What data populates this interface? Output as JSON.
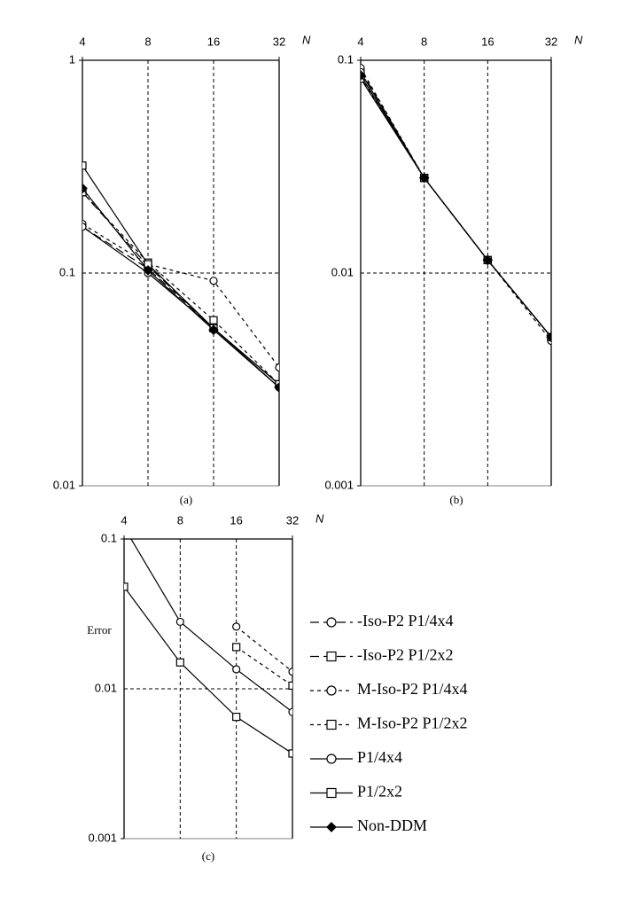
{
  "chart_data": [
    {
      "type": "line",
      "caption": "(a)",
      "x_label": "N",
      "x": [
        4,
        8,
        16,
        32
      ],
      "xlim": [
        4,
        32
      ],
      "xticks": [
        4,
        8,
        16,
        32
      ],
      "ylim": [
        0.01,
        1
      ],
      "yticks": [
        0.01,
        0.1,
        1
      ],
      "log_x": true,
      "log_y": true,
      "grid": true,
      "series": [
        {
          "name": "-Iso-P2 P1/4x4",
          "color": "#000000",
          "dash": "long",
          "marker": "circle",
          "values": [
            0.165,
            0.105,
            0.055,
            0.03
          ]
        },
        {
          "name": "-Iso-P2 P1/2x2",
          "color": "#000000",
          "dash": "long",
          "marker": "square",
          "values": [
            0.24,
            0.108,
            0.055,
            0.03
          ]
        },
        {
          "name": "M-Iso-P2 P1/4x4",
          "color": "#000000",
          "dash": "short",
          "marker": "circle",
          "values": [
            0.17,
            0.11,
            0.092,
            0.036
          ]
        },
        {
          "name": "M-Iso-P2 P1/2x2",
          "color": "#000000",
          "dash": "short",
          "marker": "square",
          "values": [
            0.24,
            0.112,
            0.06,
            0.03
          ]
        },
        {
          "name": "P1/4x4",
          "color": "#000000",
          "dash": "solid",
          "marker": "circle",
          "values": [
            0.165,
            0.1,
            0.055,
            0.029
          ]
        },
        {
          "name": "P1/2x2",
          "color": "#000000",
          "dash": "solid",
          "marker": "square",
          "values": [
            0.32,
            0.11,
            0.055,
            0.03
          ]
        },
        {
          "name": "Non-DDM",
          "color": "#000000",
          "dash": "solid",
          "marker": "diamond",
          "values": [
            0.25,
            0.103,
            0.054,
            0.029
          ]
        }
      ]
    },
    {
      "type": "line",
      "caption": "(b)",
      "x_label": "N",
      "x": [
        4,
        8,
        16,
        32
      ],
      "xlim": [
        4,
        32
      ],
      "xticks": [
        4,
        8,
        16,
        32
      ],
      "ylim": [
        0.001,
        0.1
      ],
      "yticks": [
        0.001,
        0.01,
        0.1
      ],
      "log_x": true,
      "log_y": true,
      "grid": true,
      "series": [
        {
          "name": "-Iso-P2 P1/4x4",
          "color": "#000000",
          "dash": "long",
          "marker": "circle",
          "values": [
            0.09,
            0.028,
            0.0115,
            0.005
          ]
        },
        {
          "name": "-Iso-P2 P1/2x2",
          "color": "#000000",
          "dash": "long",
          "marker": "square",
          "values": [
            0.085,
            0.028,
            0.0115,
            0.005
          ]
        },
        {
          "name": "M-Iso-P2 P1/4x4",
          "color": "#000000",
          "dash": "short",
          "marker": "circle",
          "values": [
            0.092,
            0.028,
            0.0115,
            0.0048
          ]
        },
        {
          "name": "M-Iso-P2 P1/2x2",
          "color": "#000000",
          "dash": "short",
          "marker": "square",
          "values": [
            0.083,
            0.028,
            0.0115,
            0.005
          ]
        },
        {
          "name": "P1/4x4",
          "color": "#000000",
          "dash": "solid",
          "marker": "circle",
          "values": [
            0.088,
            0.028,
            0.0115,
            0.005
          ]
        },
        {
          "name": "P1/2x2",
          "color": "#000000",
          "dash": "solid",
          "marker": "square",
          "values": [
            0.082,
            0.028,
            0.0115,
            0.005
          ]
        },
        {
          "name": "Non-DDM",
          "color": "#000000",
          "dash": "solid",
          "marker": "diamond",
          "values": [
            0.085,
            0.028,
            0.0115,
            0.005
          ]
        }
      ]
    },
    {
      "type": "line",
      "caption": "(c)",
      "x_label": "N",
      "y_label": "Error",
      "x": [
        4,
        8,
        16,
        32
      ],
      "xlim": [
        4,
        32
      ],
      "xticks": [
        4,
        8,
        16,
        32
      ],
      "ylim": [
        0.001,
        0.1
      ],
      "yticks": [
        0.001,
        0.01,
        0.1
      ],
      "log_x": true,
      "log_y": true,
      "grid": true,
      "series": [
        {
          "name": "M-Iso-P2 P1/4x4",
          "color": "#000000",
          "dash": "short",
          "marker": "circle",
          "values": [
            null,
            null,
            0.026,
            0.013
          ]
        },
        {
          "name": "M-Iso-P2 P1/2x2",
          "color": "#000000",
          "dash": "short",
          "marker": "square",
          "values": [
            null,
            null,
            0.019,
            0.0105
          ]
        },
        {
          "name": "P1/4x4",
          "color": "#000000",
          "dash": "solid",
          "marker": "circle",
          "values": [
            0.12,
            0.028,
            0.0135,
            0.007
          ]
        },
        {
          "name": "P1/2x2",
          "color": "#000000",
          "dash": "solid",
          "marker": "square",
          "values": [
            0.048,
            0.015,
            0.0065,
            0.0037
          ]
        }
      ]
    }
  ]
}
